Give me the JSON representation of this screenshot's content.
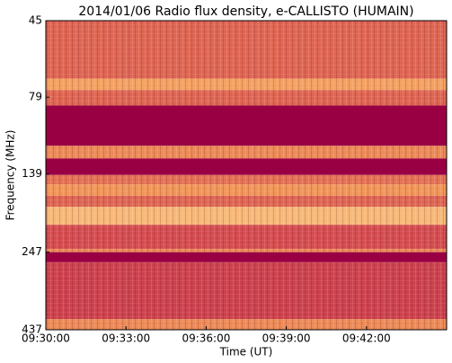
{
  "chart_data": {
    "type": "spectrogram",
    "title": "2014/01/06  Radio flux density, e-CALLISTO (HUMAIN)",
    "xlabel": "Time (UT)",
    "ylabel": "Frequency (MHz)",
    "xlim": [
      "09:30:00",
      "09:45:00"
    ],
    "xticks": [
      "09:30:00",
      "09:33:00",
      "09:36:00",
      "09:39:00",
      "09:42:00"
    ],
    "ylim": [
      437,
      45
    ],
    "yticks": [
      45,
      79,
      139,
      247,
      437
    ],
    "yscale": "log",
    "bands": [
      45,
      69,
      75,
      84,
      113,
      124,
      140,
      150,
      163,
      177,
      202,
      241,
      247,
      266,
      404,
      437
    ],
    "values": [
      0.45,
      0.7,
      0.45,
      0,
      0.6,
      0,
      0.5,
      0.65,
      0.45,
      0.8,
      0.35,
      0.6,
      0,
      0.3,
      0.6
    ],
    "colormap": [
      "#990044",
      "#d2484f",
      "#f39a5a",
      "#fde7a8"
    ]
  }
}
